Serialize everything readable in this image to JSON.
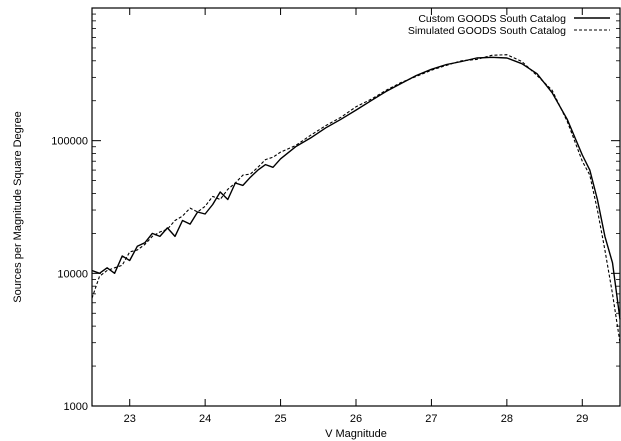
{
  "chart_data": {
    "type": "line",
    "title": "",
    "xlabel": "V Magnitude",
    "ylabel": "Sources per Magnitude Square Degree",
    "xlim": [
      22.5,
      29.5
    ],
    "ylim": [
      1000,
      1000000
    ],
    "y_scale": "log",
    "grid": false,
    "legend": "top-right",
    "x_ticks": [
      23,
      24,
      25,
      26,
      27,
      28,
      29
    ],
    "x_tick_labels": [
      "23",
      "24",
      "25",
      "26",
      "27",
      "28",
      "29"
    ],
    "y_ticks": [
      1000,
      10000,
      100000
    ],
    "y_tick_labels": [
      "1000",
      "10000",
      "100000"
    ],
    "series": [
      {
        "name": "Custom GOODS South Catalog",
        "style": "solid",
        "x": [
          22.5,
          22.6,
          22.7,
          22.8,
          22.9,
          23.0,
          23.1,
          23.2,
          23.3,
          23.4,
          23.5,
          23.6,
          23.7,
          23.8,
          23.9,
          24.0,
          24.1,
          24.2,
          24.3,
          24.4,
          24.5,
          24.6,
          24.7,
          24.8,
          24.9,
          25.0,
          25.2,
          25.4,
          25.6,
          25.8,
          26.0,
          26.2,
          26.4,
          26.6,
          26.8,
          27.0,
          27.2,
          27.4,
          27.6,
          27.8,
          28.0,
          28.2,
          28.4,
          28.6,
          28.8,
          29.0,
          29.1,
          29.2,
          29.3,
          29.4,
          29.5
        ],
        "y": [
          10500,
          10000,
          11000,
          10000,
          13500,
          12500,
          16000,
          17000,
          20000,
          19000,
          22000,
          19000,
          25000,
          23500,
          29000,
          28000,
          33000,
          41000,
          36000,
          48000,
          46000,
          53000,
          60000,
          66000,
          63000,
          73000,
          90000,
          105000,
          125000,
          145000,
          170000,
          200000,
          235000,
          270000,
          310000,
          345000,
          375000,
          395000,
          420000,
          425000,
          420000,
          380000,
          320000,
          230000,
          145000,
          78000,
          60000,
          36000,
          19000,
          12000,
          4500
        ]
      },
      {
        "name": "Simulated GOODS South Catalog",
        "style": "dashed",
        "x": [
          22.5,
          22.6,
          22.7,
          22.8,
          22.9,
          23.0,
          23.1,
          23.2,
          23.3,
          23.4,
          23.5,
          23.6,
          23.7,
          23.8,
          23.9,
          24.0,
          24.1,
          24.2,
          24.3,
          24.4,
          24.5,
          24.6,
          24.7,
          24.8,
          24.9,
          25.0,
          25.2,
          25.4,
          25.6,
          25.8,
          26.0,
          26.2,
          26.4,
          26.6,
          26.8,
          27.0,
          27.2,
          27.4,
          27.6,
          27.8,
          28.0,
          28.2,
          28.4,
          28.6,
          28.8,
          29.0,
          29.1,
          29.2,
          29.3,
          29.4,
          29.5
        ],
        "y": [
          6500,
          9500,
          10500,
          11000,
          11500,
          14500,
          15000,
          16500,
          19000,
          20500,
          21500,
          25000,
          27000,
          31000,
          29000,
          32000,
          38000,
          36000,
          43000,
          48000,
          55000,
          56000,
          63000,
          72000,
          75000,
          82000,
          92000,
          110000,
          130000,
          150000,
          180000,
          205000,
          240000,
          275000,
          305000,
          340000,
          370000,
          400000,
          410000,
          440000,
          445000,
          395000,
          310000,
          240000,
          140000,
          70000,
          55000,
          30000,
          15000,
          7000,
          3000
        ]
      }
    ]
  }
}
